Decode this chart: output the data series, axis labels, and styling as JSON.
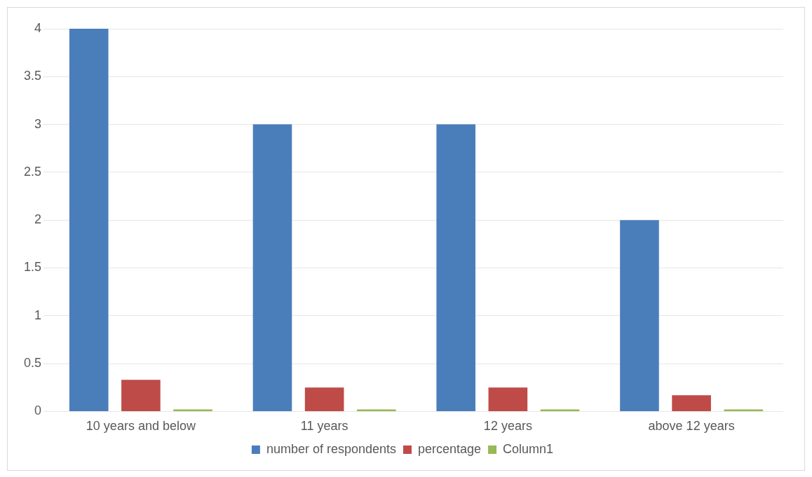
{
  "chart_data": {
    "type": "bar",
    "categories": [
      "10 years and below",
      "11 years",
      "12 years",
      "above 12 years"
    ],
    "series": [
      {
        "name": "number of respondents",
        "color": "#4a7ebb",
        "values": [
          4,
          3,
          3,
          2
        ]
      },
      {
        "name": "percentage",
        "color": "#be4b48",
        "values": [
          0.33,
          0.25,
          0.25,
          0.17
        ]
      },
      {
        "name": "Column1",
        "color": "#98b954",
        "values": [
          0,
          0,
          0,
          0
        ]
      }
    ],
    "ylim": [
      0,
      4
    ],
    "yticks": [
      0,
      0.5,
      1,
      1.5,
      2,
      2.5,
      3,
      3.5,
      4
    ],
    "grid": "y",
    "legend": "bottom"
  }
}
